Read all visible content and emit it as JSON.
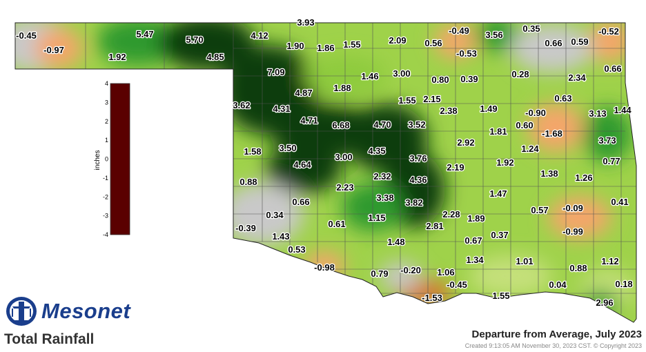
{
  "brand": {
    "name": "Mesonet"
  },
  "product": "Total Rainfall",
  "title": "Departure from Average, July 2023",
  "created": "Created 9:13:05 AM November 30, 2023 CST. © Copyright 2023",
  "legend": {
    "unit": "inches",
    "min": -4,
    "max": 4,
    "ticks": [
      "4",
      "3",
      "2",
      "1",
      "0",
      "-1",
      "-2",
      "-3",
      "-4"
    ],
    "stops": [
      {
        "value": -4,
        "color": "#5a0000"
      },
      {
        "value": -3,
        "color": "#8c2a08"
      },
      {
        "value": -2,
        "color": "#d5762d"
      },
      {
        "value": -1,
        "color": "#f4a66a"
      },
      {
        "value": 0,
        "color": "#c9c9c9"
      },
      {
        "value": 1,
        "color": "#c5e07a"
      },
      {
        "value": 2,
        "color": "#8ecb3c"
      },
      {
        "value": 3,
        "color": "#2d9a2d"
      },
      {
        "value": 4,
        "color": "#0a3d0a"
      }
    ]
  },
  "stations": [
    "-0.45",
    "-0.97",
    "1.92",
    "5.47",
    "5.70",
    "4.85",
    "4.12",
    "3.93",
    "1.90",
    "1.86",
    "1.55",
    "2.09",
    "-0.49",
    "0.56",
    "-0.53",
    "3.56",
    "0.35",
    "0.66",
    "0.59",
    "-0.52",
    "0.66",
    "7.09",
    "1.46",
    "3.00",
    "0.80",
    "0.39",
    "0.28",
    "2.34",
    "1.88",
    "4.87",
    "3.62",
    "4.31",
    "1.55",
    "2.15",
    "0.63",
    "2.38",
    "1.49",
    "-0.90",
    "3.13",
    "1.44",
    "4.71",
    "6.68",
    "4.70",
    "3.52",
    "0.60",
    "-1.68",
    "1.81",
    "1.58",
    "3.50",
    "4.35",
    "2.92",
    "1.24",
    "3.73",
    "3.00",
    "3.76",
    "4.64",
    "2.19",
    "1.92",
    "0.77",
    "1.38",
    "1.26",
    "0.88",
    "2.32",
    "4.36",
    "2.23",
    "3.38",
    "3.82",
    "1.47",
    "0.66",
    "0.41",
    "0.34",
    "0.57",
    "-0.09",
    "0.61",
    "1.15",
    "2.28",
    "1.89",
    "2.81",
    "-0.99",
    "-0.39",
    "1.43",
    "0.37",
    "0.67",
    "1.48",
    "0.53",
    "1.34",
    "1.01",
    "1.12",
    "-0.98",
    "0.79",
    "-0.20",
    "1.06",
    "0.88",
    "-0.45",
    "0.04",
    "0.18",
    "-1.53",
    "1.55",
    "2.96"
  ]
}
